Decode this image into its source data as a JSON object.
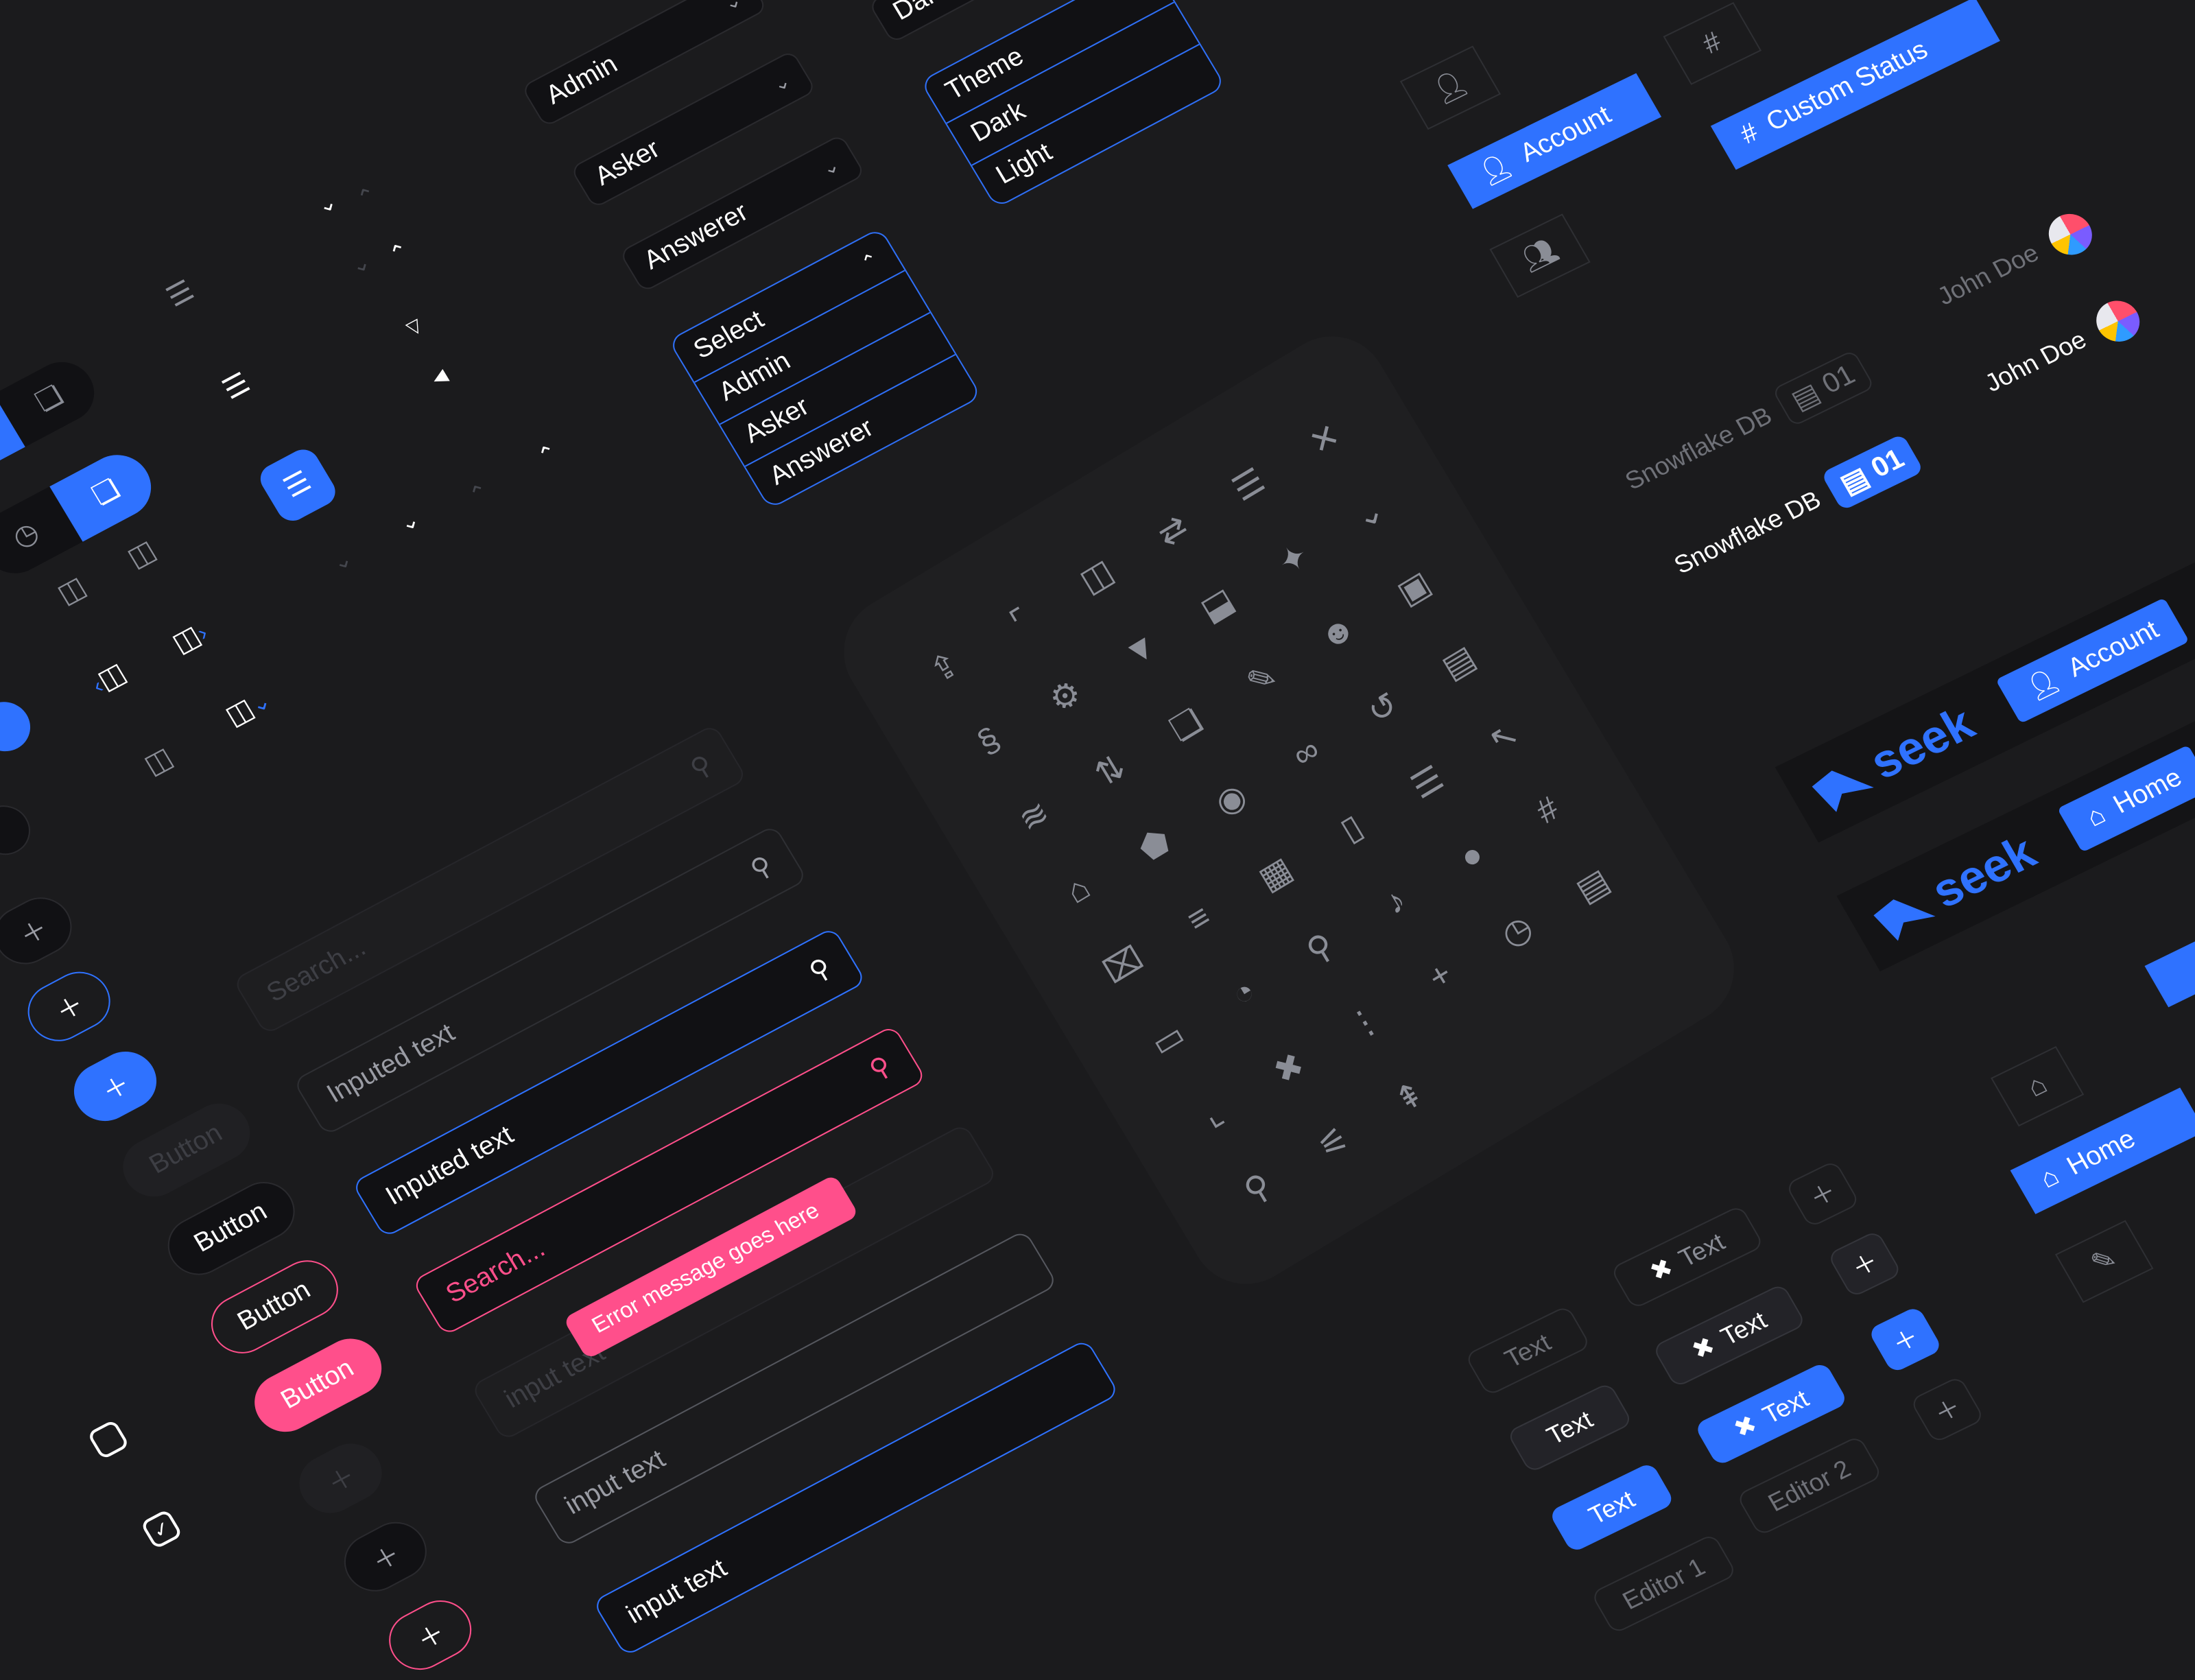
{
  "colors": {
    "background": "#1b1b1d",
    "accent": "#2f72ff",
    "error": "#ff4f8b",
    "field": "#111114",
    "icon": "#8a8d96"
  },
  "dropdowns": {
    "closed": [
      "Admin",
      "Asker",
      "Answerer"
    ],
    "partial": "Dark",
    "select_menu": {
      "header": "Select",
      "options": [
        "Admin",
        "Asker",
        "Answerer"
      ]
    },
    "theme_menu": {
      "header": "Theme",
      "options": [
        "Dark",
        "Light"
      ]
    }
  },
  "buttons": {
    "disabled": "Button",
    "default": "Button",
    "outline": "Button",
    "primary": "Button"
  },
  "inputs": {
    "search_placeholder": "Search...",
    "inputed_1": "Inputed text",
    "inputed_2": "Inputed text",
    "error_placeholder": "Search...",
    "error_message": "Error message goes here",
    "disabled": "input text",
    "default": "input text",
    "focused": "input text"
  },
  "tabs": {
    "account": "Account",
    "custom_status": "Custom Status",
    "home": "Home"
  },
  "users": [
    {
      "name": "John Doe",
      "state": "muted"
    },
    {
      "name": "John Doe",
      "state": "active"
    }
  ],
  "databases": [
    {
      "name": "Snowflake DB",
      "count": "01",
      "state": "muted"
    },
    {
      "name": "Snowflake DB",
      "count": "01",
      "state": "active"
    }
  ],
  "navbars": [
    {
      "brand": "seek",
      "tab": "Account"
    },
    {
      "brand": "seek",
      "tab": "Home"
    }
  ],
  "chips": {
    "plain": [
      "Text",
      "Text",
      "Text"
    ],
    "with_logo": [
      "Text",
      "Text",
      "Text"
    ],
    "editors": [
      "Editor 1",
      "Editor 2"
    ]
  },
  "icons": [
    "share",
    "chevron-up-left",
    "sidebar-left",
    "swap-horizontal",
    "list-refresh",
    "close",
    "python",
    "cpu",
    "caret-down",
    "panel-bottom",
    "sparkle",
    "chevron-down",
    "database",
    "sort-vertical",
    "layers",
    "edit",
    "users",
    "save",
    "home",
    "tag",
    "eye",
    "binoculars",
    "history",
    "newspaper",
    "trash-x",
    "menu-right",
    "calendar",
    "document",
    "menu-lines",
    "arrow-up-left",
    "folder",
    "pie-chart",
    "search",
    "bell",
    "user",
    "hashtag",
    "chevron-down-left",
    "brand-logo",
    "more-vertical",
    "plus",
    "clock",
    "server",
    "pin",
    "sliders",
    "collapse-up"
  ]
}
